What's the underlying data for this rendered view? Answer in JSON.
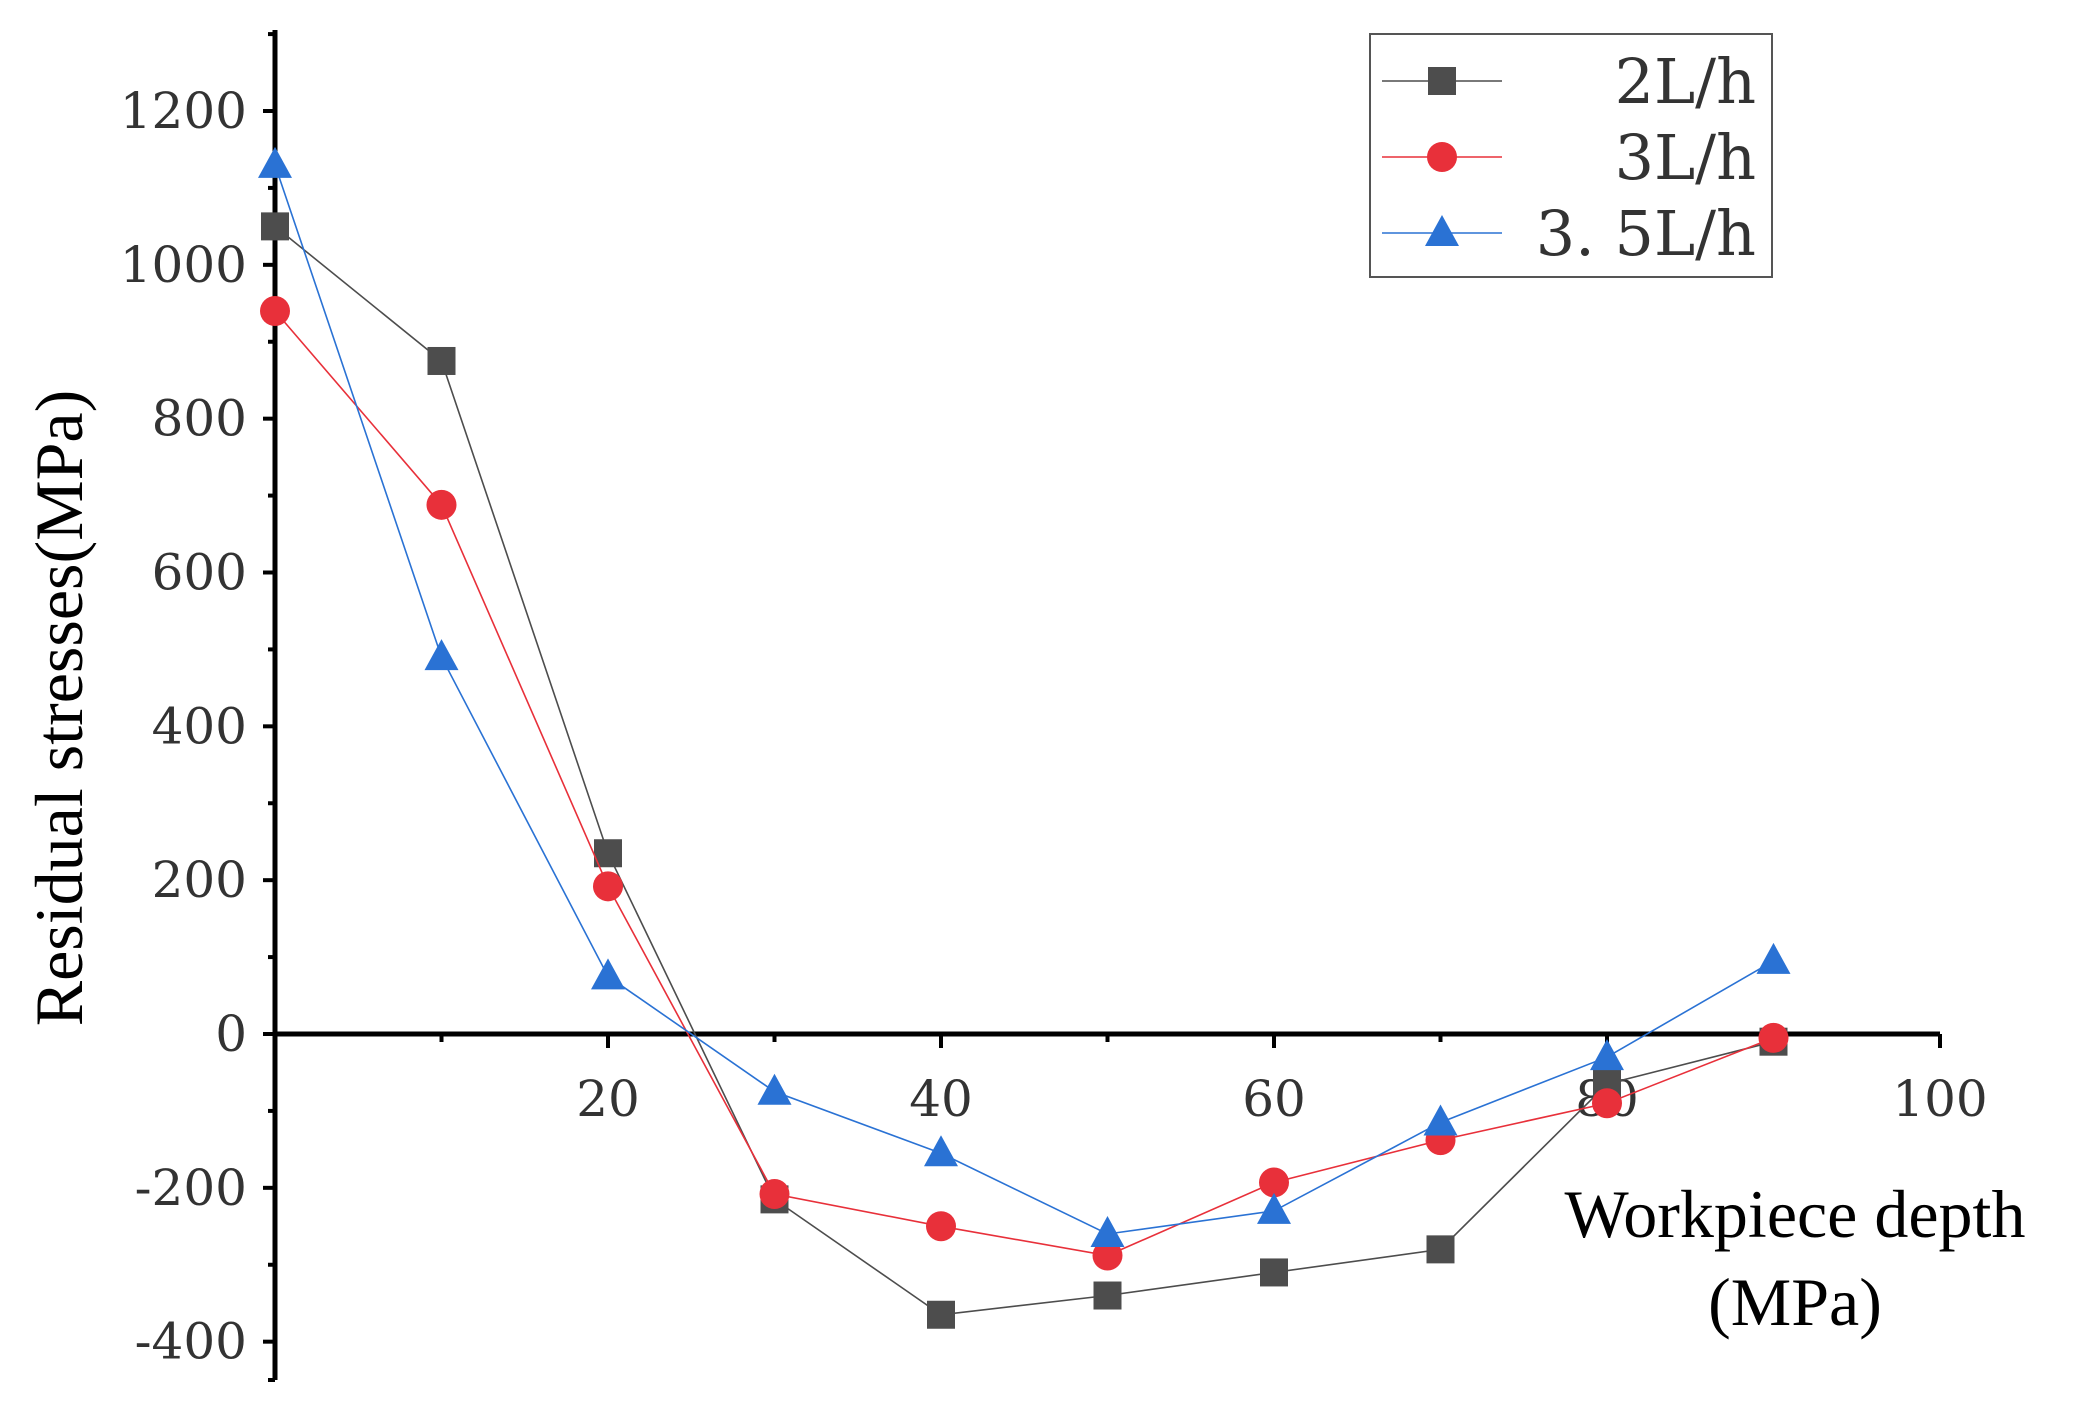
{
  "chart_data": {
    "type": "line",
    "xlabel": "Workpiece depth",
    "xlabel_line2": "(MPa)",
    "ylabel": "Residual stresses(MPa)",
    "xlim": [
      0,
      100
    ],
    "ylim": [
      -450,
      1300
    ],
    "x_ticks": [
      20,
      40,
      60,
      80,
      100
    ],
    "x_tick_labels": [
      "20",
      "40",
      "60",
      "80",
      "100"
    ],
    "y_ticks": [
      -400,
      -200,
      0,
      200,
      400,
      600,
      800,
      1000,
      1200
    ],
    "y_tick_labels": [
      "-400",
      "-200",
      "0",
      "200",
      "400",
      "600",
      "800",
      "1000",
      "1200"
    ],
    "legend_position": "top-right",
    "grid": false,
    "x": [
      0,
      10,
      20,
      30,
      40,
      50,
      60,
      70,
      80,
      90
    ],
    "series": [
      {
        "name": "2L/h",
        "marker": "square",
        "color": "#4d4d4d",
        "values": [
          1050,
          875,
          235,
          -215,
          -365,
          -340,
          -310,
          -280,
          -65,
          -10
        ]
      },
      {
        "name": "3L/h",
        "marker": "circle",
        "color": "#e8303a",
        "values": [
          940,
          688,
          192,
          -208,
          -250,
          -288,
          -193,
          -138,
          -90,
          -5
        ]
      },
      {
        "name": "3. 5L/h",
        "marker": "triangle",
        "color": "#2a72d4",
        "values": [
          1130,
          490,
          75,
          -75,
          -155,
          -260,
          -230,
          -115,
          -30,
          95
        ]
      }
    ]
  }
}
